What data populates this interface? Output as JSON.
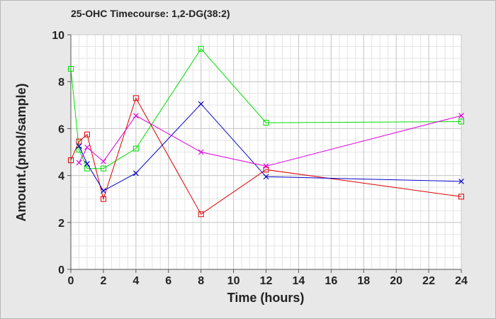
{
  "chart_data": {
    "type": "line",
    "title": "25-OHC Timecourse: 1,2-DG(38:2)",
    "xlabel": "Time (hours)",
    "ylabel": "Amount.(pmol/sample)",
    "xlim": [
      0,
      24
    ],
    "ylim": [
      0,
      10
    ],
    "x_ticks": [
      0,
      2,
      4,
      6,
      8,
      10,
      12,
      14,
      16,
      18,
      20,
      22,
      24
    ],
    "y_ticks": [
      0,
      2,
      4,
      6,
      8,
      10
    ],
    "grid": true,
    "legend": "none",
    "series": [
      {
        "color": "#00dd00",
        "marker": "square",
        "points": [
          [
            0,
            8.55
          ],
          [
            0.5,
            5.1
          ],
          [
            1,
            4.3
          ],
          [
            2,
            4.3
          ],
          [
            4,
            5.15
          ],
          [
            8,
            9.4
          ],
          [
            12,
            6.25
          ],
          [
            24,
            6.3
          ]
        ]
      },
      {
        "color": "#dd0000",
        "marker": "square",
        "points": [
          [
            0,
            4.65
          ],
          [
            0.5,
            5.45
          ],
          [
            1,
            5.75
          ],
          [
            2,
            3.0
          ],
          [
            4,
            7.3
          ],
          [
            8,
            2.35
          ],
          [
            12,
            4.25
          ],
          [
            24,
            3.1
          ]
        ]
      },
      {
        "color": "#0000cc",
        "marker": "cross",
        "points": [
          [
            0.5,
            5.25
          ],
          [
            1,
            4.5
          ],
          [
            2,
            3.35
          ],
          [
            4,
            4.1
          ],
          [
            8,
            7.05
          ],
          [
            12,
            3.95
          ],
          [
            24,
            3.75
          ]
        ]
      },
      {
        "color": "#dd00dd",
        "marker": "cross",
        "points": [
          [
            0.5,
            4.55
          ],
          [
            1,
            5.2
          ],
          [
            2,
            4.6
          ],
          [
            4,
            6.55
          ],
          [
            8,
            5.0
          ],
          [
            12,
            4.4
          ],
          [
            24,
            6.55
          ]
        ]
      }
    ]
  }
}
